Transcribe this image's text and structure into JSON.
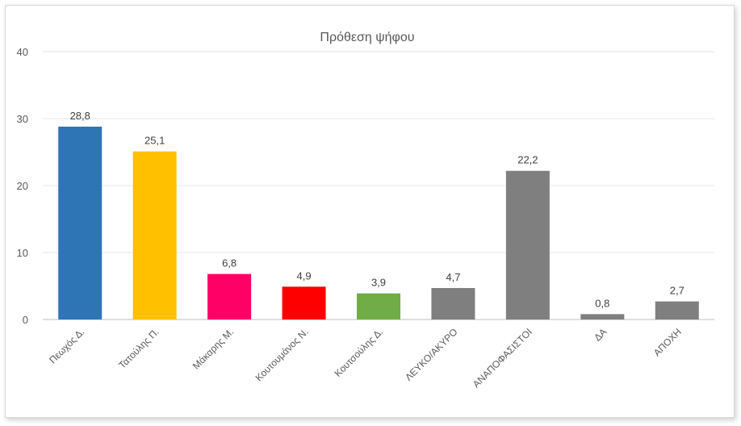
{
  "chart_data": {
    "type": "bar",
    "title": "Πρόθεση ψήφου",
    "xlabel": "",
    "ylabel": "",
    "ylim": [
      0,
      40
    ],
    "yticks": [
      "0",
      "10",
      "20",
      "30",
      "40"
    ],
    "grid": true,
    "legend": "none",
    "categories": [
      "Πεωχός Δ.",
      "Τατούλης Π.",
      "Μάκαρης Μ.",
      "Κουτουμάνος Ν.",
      "Κουτσούλης Δ.",
      "ΛΕΥΚΟ/ΑΚΥΡΟ",
      "ΑΝΑΠΟΦΑΣΙΣΤΟΙ",
      "ΔΑ",
      "ΑΠΟΧΗ"
    ],
    "values": [
      28.8,
      25.1,
      6.8,
      4.9,
      3.9,
      4.7,
      22.2,
      0.8,
      2.7
    ],
    "value_labels": [
      "28,8",
      "25,1",
      "6,8",
      "4,9",
      "3,9",
      "4,7",
      "22,2",
      "0,8",
      "2,7"
    ],
    "colors": [
      "#2e75b6",
      "#ffc000",
      "#ff0066",
      "#ff0000",
      "#70ad47",
      "#7f7f7f",
      "#7f7f7f",
      "#7f7f7f",
      "#7f7f7f"
    ]
  }
}
